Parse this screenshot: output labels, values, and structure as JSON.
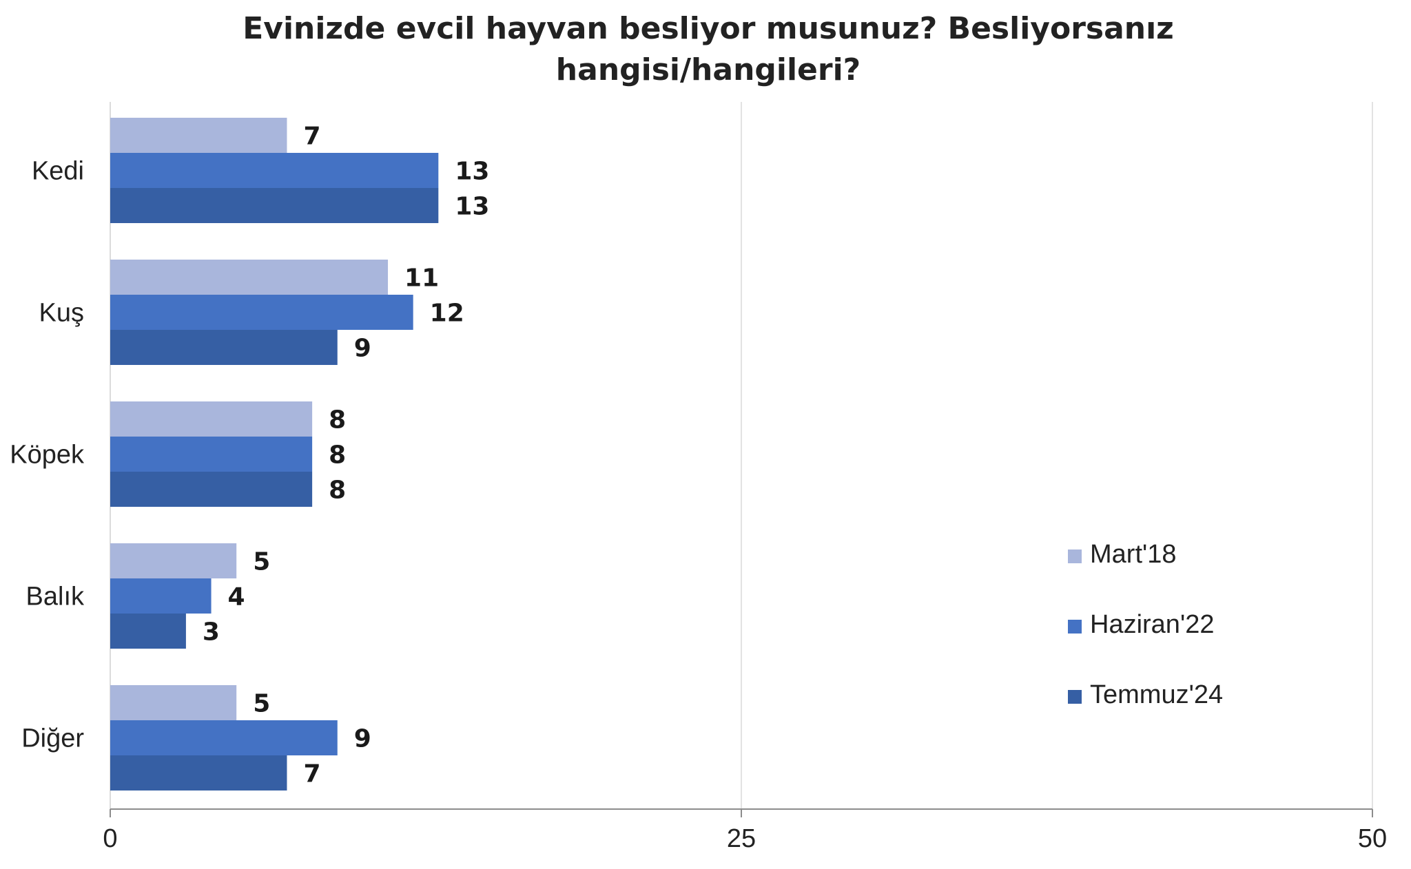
{
  "chart_data": {
    "type": "bar",
    "orientation": "horizontal",
    "title": [
      "Evinizde evcil hayvan besliyor musunuz? Besliyorsanız",
      "hangisi/hangileri?"
    ],
    "categories": [
      "Kedi",
      "Kuş",
      "Köpek",
      "Balık",
      "Diğer"
    ],
    "series": [
      {
        "name": "Mart'18",
        "color": "#a9b6dc",
        "values": [
          7,
          11,
          8,
          5,
          5
        ]
      },
      {
        "name": "Haziran'22",
        "color": "#4472c4",
        "values": [
          13,
          12,
          8,
          4,
          9
        ]
      },
      {
        "name": "Temmuz'24",
        "color": "#365fa4",
        "values": [
          13,
          9,
          8,
          3,
          7
        ]
      }
    ],
    "xlim": [
      0,
      50
    ],
    "xticks": [
      0,
      25,
      50
    ],
    "grid": true,
    "legend": "bottom-right"
  }
}
